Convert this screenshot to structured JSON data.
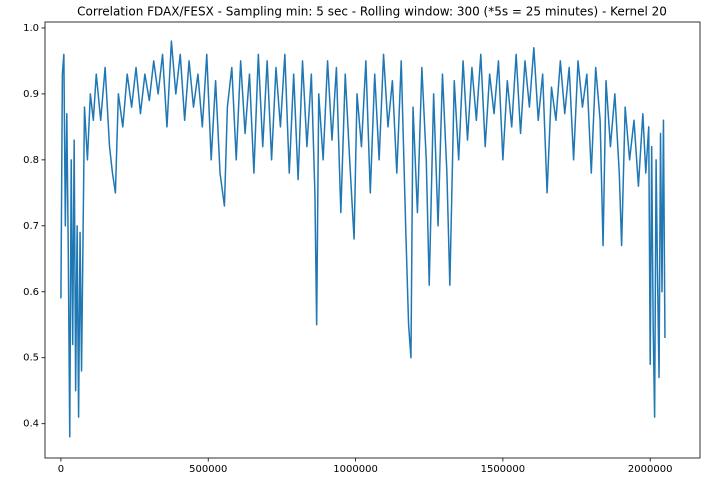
{
  "chart_data": {
    "type": "line",
    "title": "Correlation FDAX/FESX - Sampling min: 5 sec - Rolling window: 300 (*5s = 25 minutes) - Kernel 20",
    "color": "#1f77b4",
    "xlim": [
      -54000,
      2169000
    ],
    "ylim": [
      0.348,
      1.009
    ],
    "xticks": [
      0,
      500000,
      1000000,
      1500000,
      2000000
    ],
    "yticks": [
      0.4,
      0.5,
      0.6,
      0.7,
      0.8,
      0.9,
      {
        "value": 1,
        "label": "1.0"
      }
    ],
    "x": [
      0,
      5000,
      10000,
      15000,
      20000,
      25000,
      30000,
      35000,
      40000,
      45000,
      50000,
      55000,
      60000,
      65000,
      70000,
      80000,
      90000,
      100000,
      110000,
      120000,
      135000,
      150000,
      165000,
      175000,
      185000,
      195000,
      210000,
      225000,
      240000,
      255000,
      270000,
      285000,
      300000,
      315000,
      330000,
      345000,
      360000,
      375000,
      390000,
      405000,
      420000,
      435000,
      450000,
      465000,
      480000,
      495000,
      510000,
      525000,
      540000,
      555000,
      565000,
      580000,
      595000,
      610000,
      625000,
      640000,
      655000,
      670000,
      685000,
      700000,
      715000,
      730000,
      745000,
      760000,
      775000,
      790000,
      805000,
      820000,
      835000,
      850000,
      862000,
      868000,
      875000,
      890000,
      905000,
      920000,
      935000,
      950000,
      965000,
      980000,
      995000,
      1005000,
      1020000,
      1035000,
      1050000,
      1065000,
      1080000,
      1095000,
      1110000,
      1125000,
      1140000,
      1155000,
      1170000,
      1180000,
      1188000,
      1195000,
      1210000,
      1225000,
      1240000,
      1250000,
      1265000,
      1280000,
      1295000,
      1310000,
      1320000,
      1335000,
      1350000,
      1365000,
      1380000,
      1395000,
      1410000,
      1425000,
      1440000,
      1455000,
      1470000,
      1485000,
      1500000,
      1515000,
      1530000,
      1545000,
      1560000,
      1575000,
      1590000,
      1605000,
      1620000,
      1635000,
      1650000,
      1665000,
      1680000,
      1695000,
      1710000,
      1725000,
      1740000,
      1755000,
      1770000,
      1785000,
      1800000,
      1815000,
      1830000,
      1840000,
      1850000,
      1865000,
      1880000,
      1895000,
      1903000,
      1915000,
      1930000,
      1945000,
      1960000,
      1975000,
      1985000,
      1995000,
      2000000,
      2005000,
      2010000,
      2015000,
      2020000,
      2025000,
      2030000,
      2035000,
      2040000,
      2045000,
      2050000
    ],
    "values": [
      0.59,
      0.93,
      0.96,
      0.7,
      0.87,
      0.66,
      0.38,
      0.8,
      0.52,
      0.83,
      0.45,
      0.7,
      0.41,
      0.69,
      0.48,
      0.88,
      0.8,
      0.9,
      0.86,
      0.93,
      0.86,
      0.94,
      0.82,
      0.78,
      0.75,
      0.9,
      0.85,
      0.93,
      0.88,
      0.94,
      0.87,
      0.93,
      0.89,
      0.95,
      0.9,
      0.96,
      0.85,
      0.98,
      0.9,
      0.96,
      0.86,
      0.95,
      0.88,
      0.93,
      0.85,
      0.96,
      0.8,
      0.92,
      0.78,
      0.73,
      0.88,
      0.94,
      0.8,
      0.95,
      0.84,
      0.93,
      0.78,
      0.96,
      0.82,
      0.95,
      0.8,
      0.94,
      0.85,
      0.96,
      0.78,
      0.93,
      0.77,
      0.95,
      0.82,
      0.93,
      0.75,
      0.55,
      0.9,
      0.8,
      0.95,
      0.83,
      0.94,
      0.72,
      0.93,
      0.8,
      0.68,
      0.9,
      0.82,
      0.95,
      0.75,
      0.93,
      0.8,
      0.96,
      0.85,
      0.92,
      0.78,
      0.95,
      0.7,
      0.55,
      0.5,
      0.88,
      0.72,
      0.94,
      0.8,
      0.61,
      0.9,
      0.7,
      0.93,
      0.78,
      0.61,
      0.92,
      0.8,
      0.95,
      0.83,
      0.94,
      0.86,
      0.96,
      0.82,
      0.93,
      0.87,
      0.95,
      0.8,
      0.92,
      0.85,
      0.96,
      0.84,
      0.95,
      0.88,
      0.97,
      0.86,
      0.93,
      0.75,
      0.91,
      0.86,
      0.95,
      0.87,
      0.94,
      0.8,
      0.95,
      0.88,
      0.93,
      0.78,
      0.94,
      0.86,
      0.67,
      0.92,
      0.82,
      0.9,
      0.78,
      0.67,
      0.88,
      0.8,
      0.86,
      0.76,
      0.87,
      0.78,
      0.85,
      0.49,
      0.82,
      0.55,
      0.41,
      0.8,
      0.62,
      0.47,
      0.84,
      0.6,
      0.86,
      0.53
    ]
  }
}
